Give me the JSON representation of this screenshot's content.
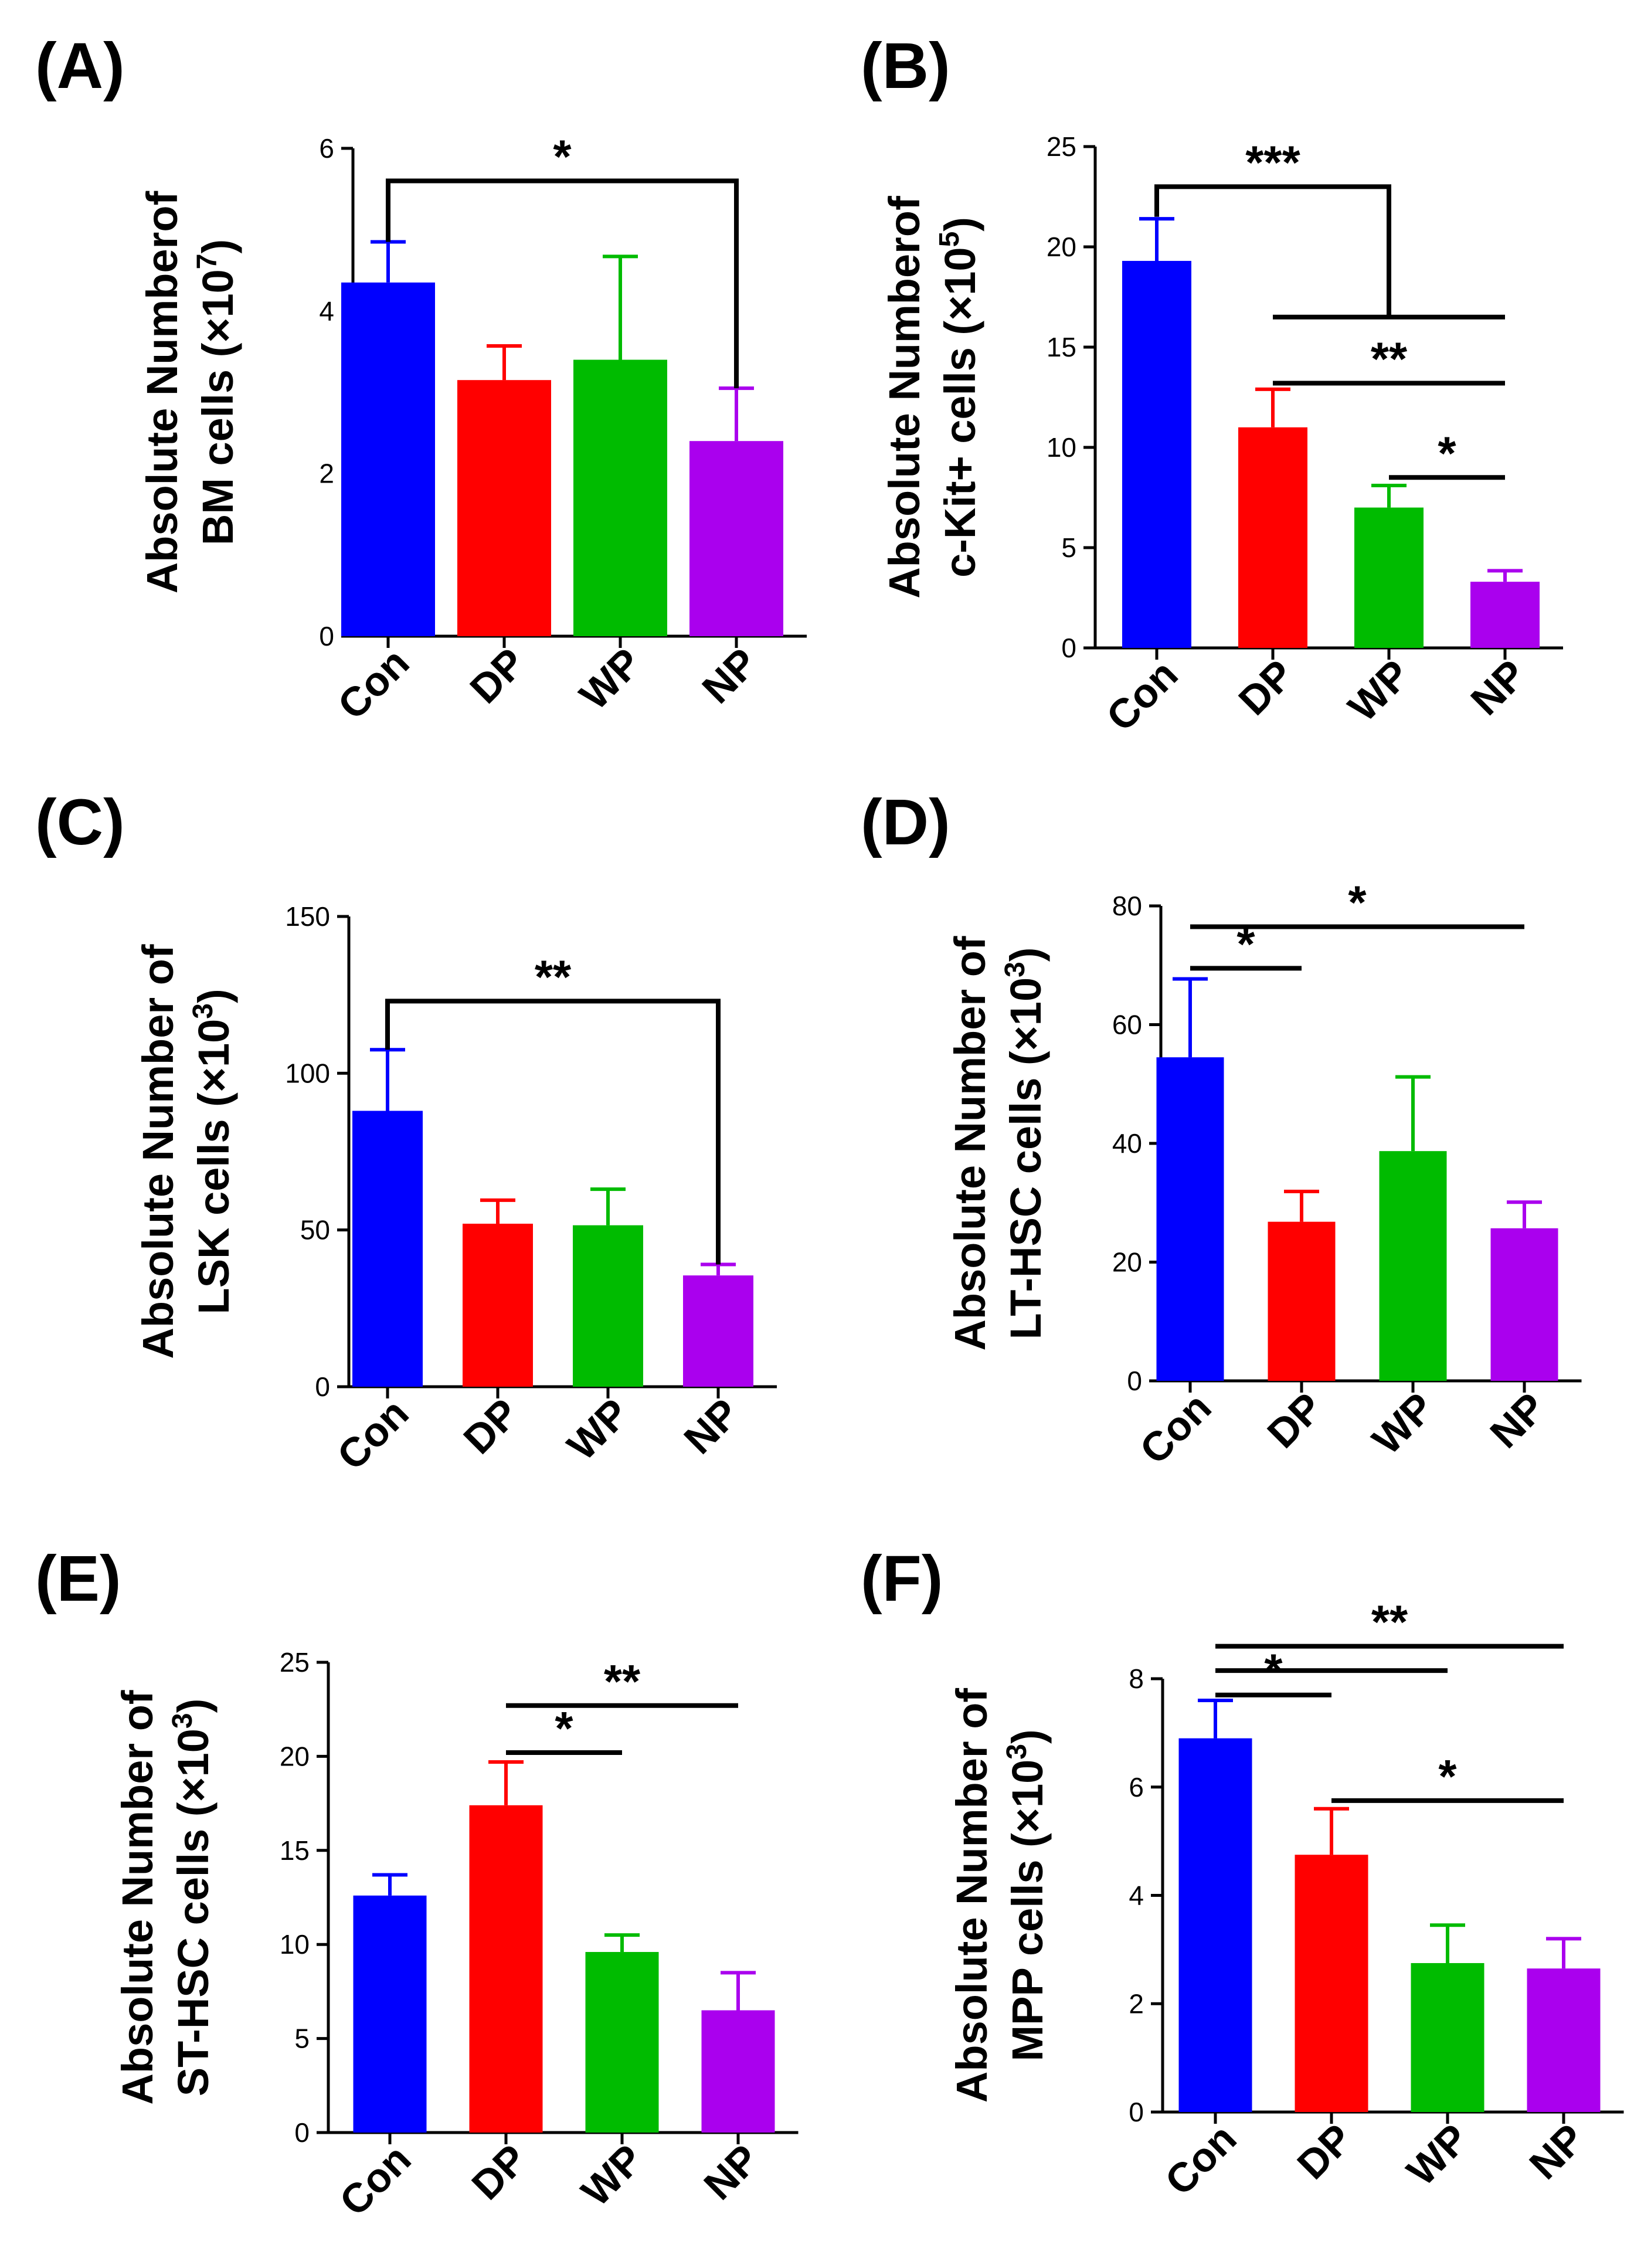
{
  "chart_data": [
    {
      "type": "bar",
      "panel_label": "(A)",
      "ylabel_line1": "Absolute Numberof",
      "ylabel_line2": "BM cells (×10",
      "ylabel_exp": "7",
      "ylabel_tail": ")",
      "categories": [
        "Con",
        "DP",
        "WP",
        "NP"
      ],
      "values": [
        4.35,
        3.15,
        3.4,
        2.4
      ],
      "errors": [
        0.5,
        0.42,
        1.27,
        0.65
      ],
      "colors": [
        "#0000ff",
        "#ff0000",
        "#00bb00",
        "#aa00ee"
      ],
      "ylim": [
        0,
        6
      ],
      "ticks": [
        "0",
        "2",
        "4",
        "6"
      ],
      "brackets": [
        {
          "type": "bracket",
          "from": 0,
          "to": 3,
          "y": 5.6,
          "left_drop_to": 4.85,
          "right_drop_to": 3.05,
          "label": "*"
        }
      ]
    },
    {
      "type": "bar",
      "panel_label": "(B)",
      "ylabel_line1": "Absolute Numberof",
      "ylabel_line2": "c-Kit+ cells (×10",
      "ylabel_exp": "5",
      "ylabel_tail": ")",
      "categories": [
        "Con",
        "DP",
        "WP",
        "NP"
      ],
      "values": [
        19.3,
        11.0,
        7.0,
        3.3
      ],
      "errors": [
        2.1,
        1.9,
        1.1,
        0.55
      ],
      "colors": [
        "#0000ff",
        "#ff0000",
        "#00bb00",
        "#aa00ee"
      ],
      "ylim": [
        0,
        25
      ],
      "ticks": [
        "0",
        "5",
        "10",
        "15",
        "20",
        "25"
      ],
      "brackets": [
        {
          "type": "step",
          "from": 0,
          "to": 2,
          "y": 23.0,
          "left_drop_to": 21.5,
          "right_drop_to": 16.5,
          "label": "***"
        },
        {
          "type": "line",
          "from": 1,
          "to": 3,
          "y": 16.5,
          "label": ""
        },
        {
          "type": "line",
          "from": 1,
          "to": 3,
          "y": 13.2,
          "label": "**"
        },
        {
          "type": "line",
          "from": 2,
          "to": 3,
          "y": 8.5,
          "label": "*"
        }
      ]
    },
    {
      "type": "bar",
      "panel_label": "(C)",
      "ylabel_line1": "Absolute Number of",
      "ylabel_line2": "LSK cells (×10",
      "ylabel_exp": "3",
      "ylabel_tail": ")",
      "categories": [
        "Con",
        "DP",
        "WP",
        "NP"
      ],
      "values": [
        88,
        52,
        51.5,
        35.5
      ],
      "errors": [
        19.5,
        7.5,
        11.5,
        3.5
      ],
      "colors": [
        "#0000ff",
        "#ff0000",
        "#00bb00",
        "#aa00ee"
      ],
      "ylim": [
        0,
        150
      ],
      "ticks": [
        "0",
        "50",
        "100",
        "150"
      ],
      "brackets": [
        {
          "type": "bracket",
          "from": 0,
          "to": 3,
          "y": 123,
          "left_drop_to": 107.5,
          "right_drop_to": 39,
          "label": "**"
        }
      ]
    },
    {
      "type": "bar",
      "panel_label": "(D)",
      "ylabel_line1": "Absolute Number of",
      "ylabel_line2": "LT-HSC cells (×10",
      "ylabel_exp": "3",
      "ylabel_tail": ")",
      "categories": [
        "Con",
        "DP",
        "WP",
        "NP"
      ],
      "values": [
        54.5,
        26.8,
        38.7,
        25.7
      ],
      "errors": [
        13.2,
        5.1,
        12.5,
        4.4
      ],
      "colors": [
        "#0000ff",
        "#ff0000",
        "#00bb00",
        "#aa00ee"
      ],
      "ylim": [
        0,
        80
      ],
      "ticks": [
        "0",
        "20",
        "40",
        "60",
        "80"
      ],
      "brackets": [
        {
          "type": "line",
          "from": 0,
          "to": 3,
          "y": 76.5,
          "label": "*"
        },
        {
          "type": "line",
          "from": 0,
          "to": 1,
          "y": 69.5,
          "label": "*"
        }
      ]
    },
    {
      "type": "bar",
      "panel_label": "(E)",
      "ylabel_line1": "Absolute Number of",
      "ylabel_line2": "ST-HSC cells (×10",
      "ylabel_exp": "3",
      "ylabel_tail": ")",
      "categories": [
        "Con",
        "DP",
        "WP",
        "NP"
      ],
      "values": [
        12.6,
        17.4,
        9.6,
        6.5
      ],
      "errors": [
        1.1,
        2.3,
        0.9,
        2.0
      ],
      "colors": [
        "#0000ff",
        "#ff0000",
        "#00bb00",
        "#aa00ee"
      ],
      "ylim": [
        0,
        25
      ],
      "ticks": [
        "0",
        "5",
        "10",
        "15",
        "20",
        "25"
      ],
      "brackets": [
        {
          "type": "line",
          "from": 1,
          "to": 3,
          "y": 22.7,
          "label": "**"
        },
        {
          "type": "line",
          "from": 1,
          "to": 2,
          "y": 20.2,
          "label": "*"
        }
      ]
    },
    {
      "type": "bar",
      "panel_label": "(F)",
      "ylabel_line1": "Absolute Number of",
      "ylabel_line2": "MPP cells (×10",
      "ylabel_exp": "3",
      "ylabel_tail": ")",
      "categories": [
        "Con",
        "DP",
        "WP",
        "NP"
      ],
      "values": [
        6.9,
        4.75,
        2.75,
        2.65
      ],
      "errors": [
        0.7,
        0.85,
        0.7,
        0.55
      ],
      "colors": [
        "#0000ff",
        "#ff0000",
        "#00bb00",
        "#aa00ee"
      ],
      "ylim": [
        0,
        8
      ],
      "ticks": [
        "0",
        "2",
        "4",
        "6",
        "8"
      ],
      "brackets": [
        {
          "type": "line",
          "from": 0,
          "to": 3,
          "y": 8.6,
          "label": "**"
        },
        {
          "type": "line",
          "from": 0,
          "to": 2,
          "y": 8.15,
          "label": ""
        },
        {
          "type": "line",
          "from": 0,
          "to": 1,
          "y": 7.7,
          "label": "*"
        },
        {
          "type": "line",
          "from": 1,
          "to": 3,
          "y": 5.75,
          "label": "*"
        }
      ]
    }
  ]
}
